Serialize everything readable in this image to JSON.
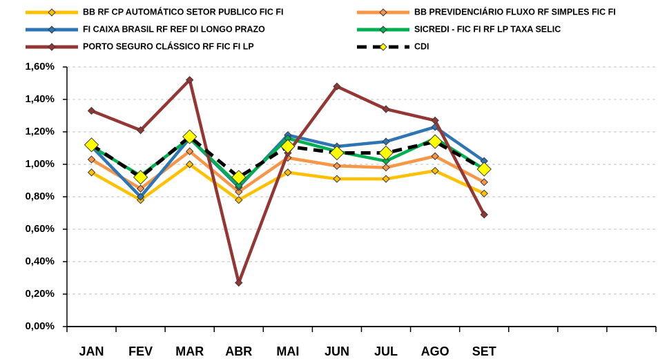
{
  "chart_data": {
    "type": "line",
    "categories": [
      "JAN",
      "FEV",
      "MAR",
      "ABR",
      "MAI",
      "JUN",
      "JUL",
      "AGO",
      "SET",
      null,
      null,
      null
    ],
    "series": [
      {
        "name": "BB RF CP AUTOMÁTICO SETOR PUBLICO FIC FI",
        "color": "#FFC000",
        "values": [
          0.95,
          0.78,
          1.0,
          0.78,
          0.95,
          0.91,
          0.91,
          0.96,
          0.82,
          null,
          null,
          null
        ]
      },
      {
        "name": "BB PREVIDENCIÁRIO FLUXO RF SIMPLES FIC FI",
        "color": "#F79646",
        "values": [
          1.03,
          0.85,
          1.08,
          0.83,
          1.04,
          0.99,
          0.98,
          1.05,
          0.89,
          null,
          null,
          null
        ]
      },
      {
        "name": "FI CAIXA BRASIL RF REF DI LONGO PRAZO",
        "color": "#2E75B6",
        "values": [
          1.11,
          0.8,
          1.16,
          0.86,
          1.18,
          1.11,
          1.14,
          1.23,
          1.02,
          null,
          null,
          null
        ]
      },
      {
        "name": "SICREDI - FIC FI RF LP TAXA SELIC",
        "color": "#00B050",
        "values": [
          1.11,
          0.93,
          1.16,
          0.87,
          1.16,
          1.08,
          1.02,
          1.16,
          0.97,
          null,
          null,
          null
        ]
      },
      {
        "name": "PORTO SEGURO CLÁSSICO RF FIC FI LP",
        "color": "#943634",
        "values": [
          1.33,
          1.21,
          1.52,
          0.27,
          1.07,
          1.48,
          1.34,
          1.27,
          0.69,
          null,
          null,
          null
        ]
      },
      {
        "name": "CDI",
        "color": "#000000",
        "marker_color": "#FFFF00",
        "dashed": true,
        "values": [
          1.12,
          0.92,
          1.17,
          0.92,
          1.11,
          1.07,
          1.07,
          1.14,
          0.97,
          null,
          null,
          null
        ]
      }
    ],
    "ylim": [
      0,
      1.6
    ],
    "yticks": [
      {
        "value": 0,
        "label": "0,00%"
      },
      {
        "value": 0.2,
        "label": "0,20%"
      },
      {
        "value": 0.4,
        "label": "0,40%"
      },
      {
        "value": 0.6,
        "label": "0,60%"
      },
      {
        "value": 0.8,
        "label": "0,80%"
      },
      {
        "value": 1.0,
        "label": "1,00%"
      },
      {
        "value": 1.2,
        "label": "1,20%"
      },
      {
        "value": 1.4,
        "label": "1,40%"
      },
      {
        "value": 1.6,
        "label": "1,60%"
      }
    ],
    "grid": true
  }
}
